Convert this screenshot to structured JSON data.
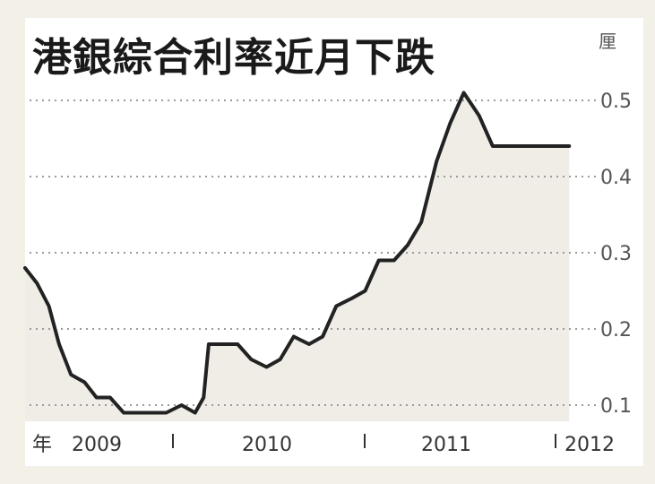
{
  "chart_data": {
    "type": "area",
    "title": "港銀綜合利率近月下跌",
    "unit": "厘",
    "x_prefix": "年",
    "xlabel": "",
    "ylabel": "",
    "ylim": [
      0.075,
      0.52
    ],
    "yticks": [
      0.1,
      0.2,
      0.3,
      0.4,
      0.5
    ],
    "yticklabels": [
      "0.1",
      "0.2",
      "0.3",
      "0.4",
      "0.5"
    ],
    "xticklabels": [
      "2009",
      "2010",
      "2011",
      "2012"
    ],
    "xlim": [
      2009.0,
      2012.32
    ],
    "grid": true,
    "line_color": "#222222",
    "fill_color": "#efede6",
    "series": [
      {
        "x": [
          2009.0,
          2009.07,
          2009.14,
          2009.2,
          2009.27,
          2009.35,
          2009.42,
          2009.5,
          2009.58,
          2009.66,
          2009.75,
          2009.83,
          2009.92,
          2010.0,
          2010.05,
          2010.08,
          2010.17,
          2010.25,
          2010.33,
          2010.42,
          2010.5,
          2010.58,
          2010.67,
          2010.75,
          2010.83,
          2010.92,
          2011.0,
          2011.08,
          2011.17,
          2011.25,
          2011.33,
          2011.42,
          2011.5,
          2011.58,
          2011.67,
          2011.75,
          2011.83,
          2011.9,
          2011.97,
          2012.04,
          2012.12,
          2012.2
        ],
        "y": [
          0.28,
          0.26,
          0.23,
          0.18,
          0.14,
          0.13,
          0.11,
          0.11,
          0.09,
          0.09,
          0.09,
          0.09,
          0.1,
          0.09,
          0.11,
          0.18,
          0.18,
          0.18,
          0.16,
          0.15,
          0.16,
          0.19,
          0.18,
          0.19,
          0.23,
          0.24,
          0.25,
          0.29,
          0.29,
          0.31,
          0.34,
          0.42,
          0.47,
          0.51,
          0.48,
          0.44,
          0.44,
          0.44,
          0.44,
          0.44,
          0.44,
          0.44
        ]
      }
    ]
  }
}
